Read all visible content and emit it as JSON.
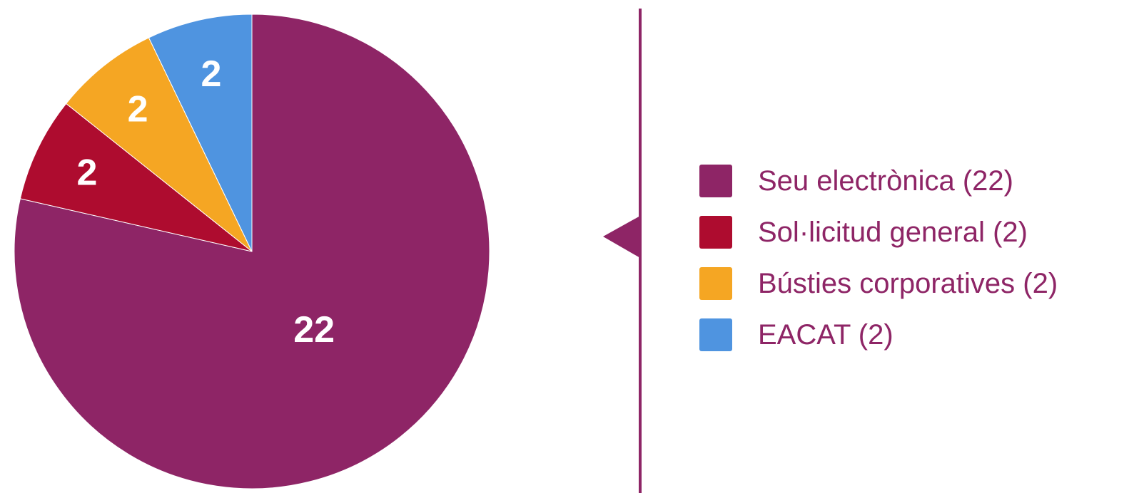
{
  "chart_data": {
    "type": "pie",
    "title": "",
    "start_angle": "12 o'clock",
    "direction": "clockwise",
    "slices": [
      {
        "name": "Seu electrònica",
        "value": 22,
        "label": "22",
        "color": "#8e2566"
      },
      {
        "name": "Sol·licitud general",
        "value": 2,
        "label": "2",
        "color": "#ae0c2f"
      },
      {
        "name": "Bústies corporatives",
        "value": 2,
        "label": "2",
        "color": "#f5a623"
      },
      {
        "name": "EACAT",
        "value": 2,
        "label": "2",
        "color": "#4f94e0"
      }
    ],
    "legend": {
      "placement": "right",
      "entries": [
        "Seu electrònica (22)",
        "Sol·licitud general (2)",
        "Bústies corporatives (2)",
        "EACAT (2)"
      ]
    },
    "divider_color": "#8e2566"
  }
}
